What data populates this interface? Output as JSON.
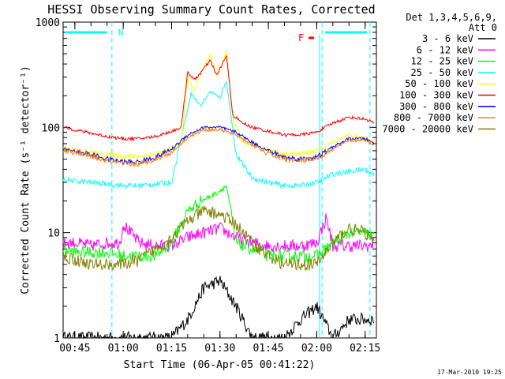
{
  "chart_data": {
    "type": "line",
    "title": "HESSI Observing Summary Count Rates, Corrected",
    "xlabel": "Start Time (06-Apr-05 00:41:22)",
    "ylabel": "Corrected Count Rate (s⁻¹ detector⁻¹)",
    "y_scale": "log",
    "ylim": [
      1,
      1000
    ],
    "y_ticks": [
      "1",
      "10",
      "100",
      "1000"
    ],
    "xlim": [
      "00:41:22",
      "02:18:30"
    ],
    "x_ticks": [
      "00:45",
      "01:00",
      "01:15",
      "01:30",
      "01:45",
      "02:00",
      "02:15"
    ],
    "legend_title": [
      "Det 1,3,4,5,6,9,",
      "Att 0"
    ],
    "legend_position": "right",
    "timestamp": "17-Mar-2010 19:25",
    "annotations": {
      "night_label": "N",
      "flare_label": "F",
      "vertical_markers": [
        "00:56:30",
        "02:01:40",
        "02:16:30"
      ]
    },
    "series": [
      {
        "name": "3 - 6 keV",
        "color": "#000000",
        "x": [
          "00:41:22",
          "00:45",
          "00:50",
          "00:55",
          "01:00",
          "01:05",
          "01:10",
          "01:15",
          "01:20",
          "01:25",
          "01:30",
          "01:35",
          "01:40",
          "01:45",
          "01:50",
          "01:55",
          "02:00",
          "02:05",
          "02:10",
          "02:15",
          "02:18"
        ],
        "y": [
          1,
          1,
          1,
          1,
          1,
          1,
          1,
          1,
          1.5,
          3,
          3.5,
          2,
          1,
          1,
          1,
          1.5,
          2,
          1,
          1.5,
          1.5,
          1.5
        ]
      },
      {
        "name": "6 - 12 keV",
        "color": "#ff00ff",
        "x": [
          "00:41:22",
          "00:45",
          "00:50",
          "00:55",
          "00:59",
          "01:00",
          "01:05",
          "01:10",
          "01:15",
          "01:20",
          "01:25",
          "01:30",
          "01:35",
          "01:40",
          "01:45",
          "01:50",
          "01:55",
          "02:00",
          "02:03",
          "02:05",
          "02:10",
          "02:15",
          "02:18"
        ],
        "y": [
          8,
          8,
          7.5,
          8,
          8,
          12,
          8,
          7.5,
          7.5,
          9,
          10,
          11,
          9,
          8,
          7.5,
          7.5,
          7.5,
          8,
          14,
          7.5,
          7.5,
          7.5,
          7.5
        ]
      },
      {
        "name": "12 - 25 keV",
        "color": "#00ff00",
        "x": [
          "00:41:22",
          "00:45",
          "00:50",
          "00:55",
          "01:00",
          "01:05",
          "01:10",
          "01:15",
          "01:20",
          "01:24",
          "01:27",
          "01:30",
          "01:32",
          "01:35",
          "01:40",
          "01:45",
          "01:50",
          "01:55",
          "02:00",
          "02:05",
          "02:10",
          "02:15",
          "02:18"
        ],
        "y": [
          7,
          6.5,
          6.5,
          6.5,
          6,
          6,
          6,
          8,
          16,
          20,
          22,
          25,
          28,
          8,
          7,
          6,
          6,
          6,
          6,
          8,
          10,
          10,
          9
        ]
      },
      {
        "name": "25 - 50 keV",
        "color": "#00ffff",
        "x": [
          "00:41:22",
          "00:45",
          "00:50",
          "00:55",
          "01:00",
          "01:05",
          "01:10",
          "01:15",
          "01:19",
          "01:21",
          "01:24",
          "01:27",
          "01:30",
          "01:32",
          "01:35",
          "01:40",
          "01:45",
          "01:50",
          "01:55",
          "02:00",
          "02:05",
          "02:10",
          "02:15",
          "02:18"
        ],
        "y": [
          32,
          31,
          30,
          29,
          28,
          28,
          29,
          30,
          110,
          210,
          160,
          220,
          190,
          280,
          55,
          33,
          30,
          28,
          28,
          30,
          36,
          38,
          40,
          35
        ]
      },
      {
        "name": "50 - 100 keV",
        "color": "#ffff00",
        "x": [
          "00:41:22",
          "00:45",
          "00:50",
          "00:55",
          "01:00",
          "01:05",
          "01:10",
          "01:15",
          "01:18",
          "01:20",
          "01:22",
          "01:24",
          "01:27",
          "01:29",
          "01:32",
          "01:34",
          "01:37",
          "01:40",
          "01:45",
          "01:50",
          "01:55",
          "02:00",
          "02:05",
          "02:10",
          "02:15",
          "02:18"
        ],
        "y": [
          65,
          62,
          58,
          55,
          53,
          53,
          56,
          62,
          70,
          300,
          220,
          320,
          500,
          300,
          530,
          120,
          72,
          68,
          62,
          56,
          56,
          60,
          72,
          85,
          80,
          72
        ]
      },
      {
        "name": "100 - 300 keV",
        "color": "#ff0000",
        "x": [
          "00:41:22",
          "00:45",
          "00:50",
          "00:55",
          "01:00",
          "01:05",
          "01:10",
          "01:15",
          "01:18",
          "01:20",
          "01:22",
          "01:24",
          "01:27",
          "01:29",
          "01:32",
          "01:34",
          "01:37",
          "01:40",
          "01:45",
          "01:50",
          "01:55",
          "02:00",
          "02:05",
          "02:10",
          "02:15",
          "02:18"
        ],
        "y": [
          100,
          95,
          88,
          82,
          78,
          78,
          82,
          92,
          100,
          340,
          280,
          330,
          430,
          310,
          480,
          130,
          110,
          100,
          92,
          85,
          85,
          90,
          110,
          125,
          120,
          110
        ]
      },
      {
        "name": "300 - 800 keV",
        "color": "#0000ff",
        "x": [
          "00:41:22",
          "00:45",
          "00:50",
          "00:55",
          "01:00",
          "01:05",
          "01:10",
          "01:15",
          "01:20",
          "01:25",
          "01:30",
          "01:35",
          "01:40",
          "01:45",
          "01:50",
          "01:55",
          "02:00",
          "02:05",
          "02:10",
          "02:15",
          "02:18"
        ],
        "y": [
          62,
          60,
          55,
          50,
          47,
          47,
          52,
          62,
          85,
          100,
          100,
          90,
          72,
          60,
          52,
          50,
          52,
          65,
          78,
          78,
          70
        ]
      },
      {
        "name": "800 - 7000 keV",
        "color": "#ff8000",
        "x": [
          "00:41:22",
          "00:45",
          "00:50",
          "00:55",
          "01:00",
          "01:05",
          "01:10",
          "01:15",
          "01:20",
          "01:25",
          "01:30",
          "01:35",
          "01:40",
          "01:45",
          "01:50",
          "01:55",
          "02:00",
          "02:05",
          "02:10",
          "02:15",
          "02:18"
        ],
        "y": [
          60,
          58,
          53,
          48,
          45,
          45,
          50,
          58,
          80,
          95,
          95,
          85,
          68,
          56,
          50,
          48,
          50,
          62,
          75,
          75,
          68
        ]
      },
      {
        "name": "7000 - 20000 keV",
        "color": "#808000",
        "x": [
          "00:41:22",
          "00:45",
          "00:50",
          "00:55",
          "01:00",
          "01:05",
          "01:10",
          "01:15",
          "01:20",
          "01:25",
          "01:30",
          "01:35",
          "01:40",
          "01:45",
          "01:50",
          "01:55",
          "02:00",
          "02:05",
          "02:10",
          "02:15",
          "02:18"
        ],
        "y": [
          6,
          5.5,
          5,
          5,
          5,
          5.5,
          7,
          9,
          13,
          16,
          15,
          12,
          8,
          6,
          5,
          5,
          5,
          8,
          11,
          10,
          8
        ]
      }
    ]
  }
}
